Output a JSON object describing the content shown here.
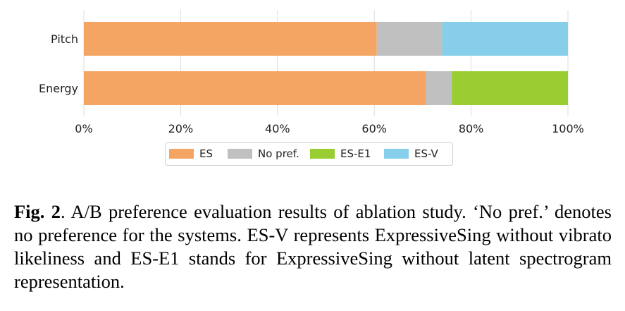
{
  "chart_data": {
    "type": "bar",
    "orientation": "horizontal",
    "stacked": true,
    "categories": [
      "Pitch",
      "Energy"
    ],
    "series": [
      {
        "name": "ES",
        "color": "#f4a563",
        "values": [
          60.5,
          70.6
        ]
      },
      {
        "name": "No pref.",
        "color": "#c0c0c0",
        "values": [
          13.5,
          5.4
        ]
      },
      {
        "name": "ES-E1",
        "color": "#9acd32",
        "values": [
          0,
          24.0
        ]
      },
      {
        "name": "ES-V",
        "color": "#87ceeb",
        "values": [
          26.0,
          0
        ]
      }
    ],
    "xlim": [
      0,
      100
    ],
    "xticks": [
      "0%",
      "20%",
      "40%",
      "60%",
      "80%",
      "100%"
    ],
    "grid": true,
    "legend_placement": "bottom-center"
  },
  "caption": {
    "label": "Fig. 2",
    "text": ". A/B preference evaluation results of ablation study. ‘No pref.’ denotes no preference for the systems. ES-V represents ExpressiveSing without vibrato likeliness and ES-E1 stands for ExpressiveSing without latent spectrogram representation."
  }
}
